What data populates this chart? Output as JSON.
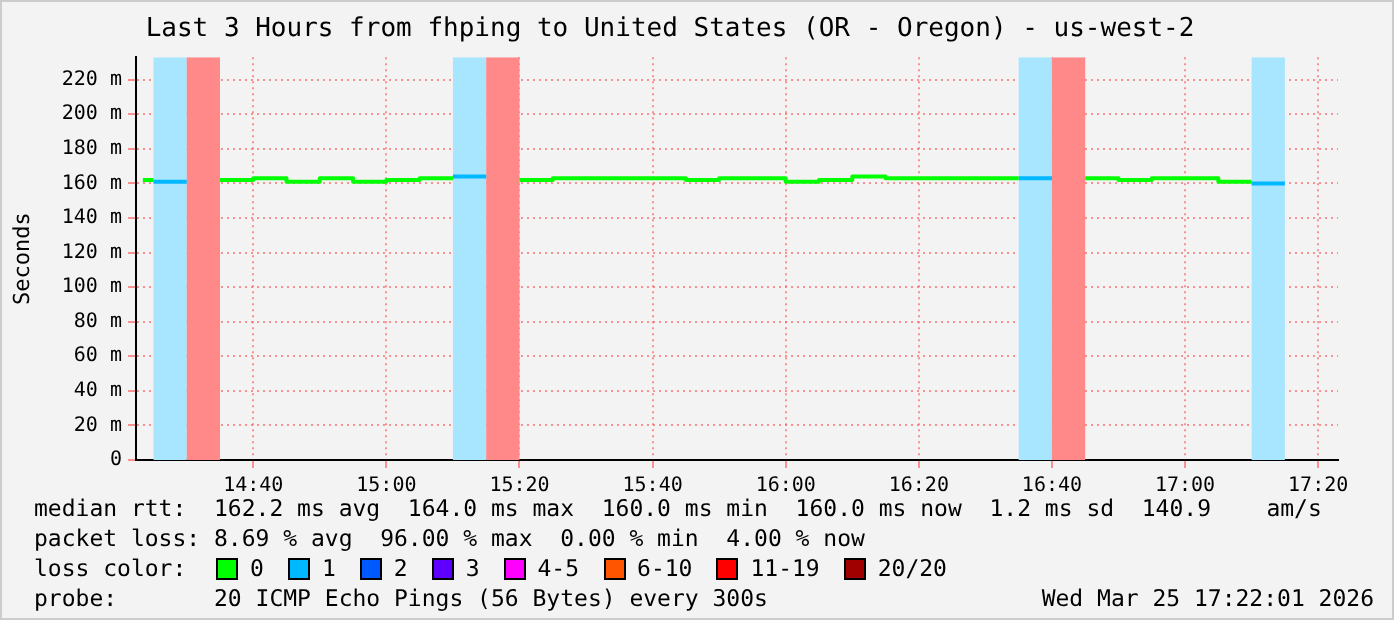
{
  "chart_data": {
    "type": "line",
    "title": "Last 3 Hours from fhping to United States (OR - Oregon) - us-west-2",
    "ylabel": "Seconds",
    "series": [
      {
        "color": "#00ff00",
        "x": [
          14.39,
          14.4167,
          14.5,
          14.5833,
          14.6667,
          14.6667,
          14.75,
          14.75,
          14.8333,
          14.8333,
          14.9167,
          14.9167,
          15,
          15,
          15.0833,
          15.0833,
          15.1667,
          15.25,
          15.3333,
          15.4167,
          15.4167,
          15.75,
          15.75,
          15.8333,
          15.8333,
          16,
          16,
          16.0833,
          16.0833,
          16.1667,
          16.1667,
          16.25,
          16.25,
          16.5833,
          16.6667,
          16.75,
          16.8333,
          16.8333,
          16.9167,
          16.9167,
          17.0833,
          17.0833,
          17.1667
        ],
        "values": [
          162,
          162,
          null,
          162,
          162,
          163,
          163,
          161,
          161,
          163,
          163,
          161,
          161,
          162,
          162,
          163,
          163,
          null,
          162,
          162,
          163,
          163,
          162,
          162,
          163,
          163,
          161,
          161,
          162,
          162,
          164,
          164,
          163,
          163,
          null,
          163,
          163,
          162,
          162,
          163,
          163,
          161,
          161
        ]
      },
      {
        "color": "#00b8ff",
        "x": [
          14.4167,
          14.5,
          14.8,
          15.1667,
          15.25,
          16,
          16.5833,
          16.6667,
          16.9,
          17.1667,
          17.25
        ],
        "values": [
          161,
          161,
          null,
          164,
          164,
          null,
          163,
          163,
          null,
          160,
          160
        ]
      }
    ],
    "xlim": [
      14.373,
      17.383
    ],
    "xticks": [
      {
        "value": 14.6667,
        "label": "14:40"
      },
      {
        "value": 15,
        "label": "15:00"
      },
      {
        "value": 15.3333,
        "label": "15:20"
      },
      {
        "value": 15.6667,
        "label": "15:40"
      },
      {
        "value": 16,
        "label": "16:00"
      },
      {
        "value": 16.3333,
        "label": "16:20"
      },
      {
        "value": 16.6667,
        "label": "16:40"
      },
      {
        "value": 17,
        "label": "17:00"
      },
      {
        "value": 17.3333,
        "label": "17:20"
      }
    ],
    "ylim": [
      0,
      233
    ],
    "yticks": [
      0,
      {
        "value": 20,
        "label": "20 m"
      },
      {
        "value": 40,
        "label": "40 m"
      },
      {
        "value": 60,
        "label": "60 m"
      },
      {
        "value": 80,
        "label": "80 m"
      },
      {
        "value": 100,
        "label": "100 m"
      },
      {
        "value": 120,
        "label": "120 m"
      },
      {
        "value": 140,
        "label": "140 m"
      },
      {
        "value": 160,
        "label": "160 m"
      },
      {
        "value": 180,
        "label": "180 m"
      },
      {
        "value": 200,
        "label": "200 m"
      },
      {
        "value": 220,
        "label": "220 m"
      }
    ],
    "bands": [
      {
        "axis": "x",
        "from": 14.4167,
        "to": 14.5,
        "color": "#a8e6ff"
      },
      {
        "axis": "x",
        "from": 14.5,
        "to": 14.5833,
        "color": "#ff8888"
      },
      {
        "axis": "x",
        "from": 15.1667,
        "to": 15.25,
        "color": "#a8e6ff"
      },
      {
        "axis": "x",
        "from": 15.25,
        "to": 15.3333,
        "color": "#ff8888"
      },
      {
        "axis": "x",
        "from": 16.5833,
        "to": 16.6667,
        "color": "#a8e6ff"
      },
      {
        "axis": "x",
        "from": 16.6667,
        "to": 16.75,
        "color": "#ff8888"
      },
      {
        "axis": "x",
        "from": 17.1667,
        "to": 17.25,
        "color": "#a8e6ff"
      }
    ],
    "grid": true,
    "marker": "none",
    "legend": false,
    "annotations": [
      "median rtt:  162.2 ms avg  164.0 ms max  160.0 ms min  160.0 ms now  1.2 ms sd  140.9    am/s",
      "packet loss: 8.69 % avg  96.00 % max  0.00 % min  4.00 % now",
      "loss color:",
      "0",
      "1",
      "2",
      "3",
      "4-5",
      "6-10",
      "11-19",
      "20/20",
      "probe:       20 ICMP Echo Pings (56 Bytes) every 300s",
      "Wed Mar 25 17:22:01 2026"
    ]
  }
}
